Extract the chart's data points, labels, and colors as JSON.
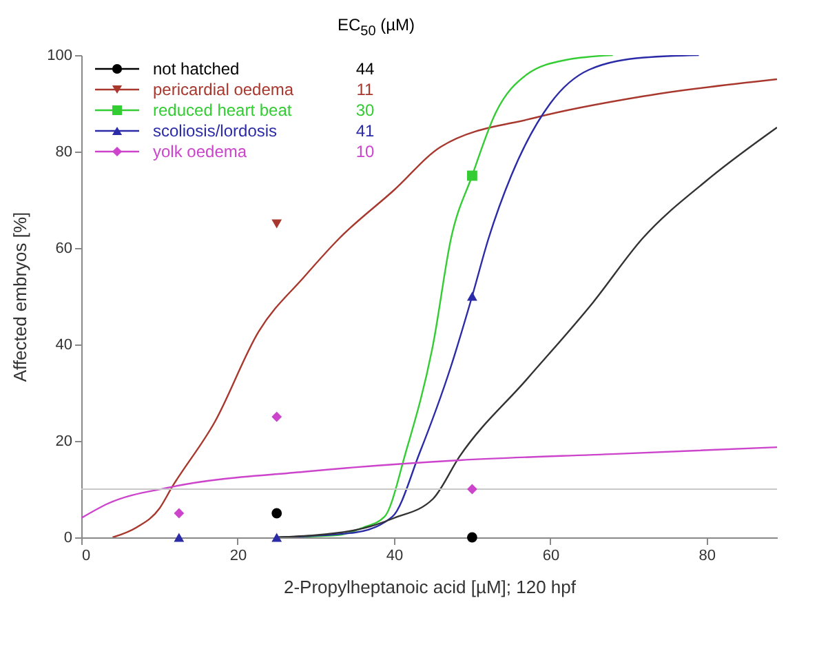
{
  "chart_data": {
    "type": "scatter",
    "xlabel": "2-Propylheptanoic acid [µM]; 120 hpf",
    "ylabel": "Affected embryos [%]",
    "x": [
      12.5,
      25,
      50
    ],
    "series": [
      {
        "type": "line",
        "color": "#a8382e",
        "x": [
          4,
          7,
          10,
          11.6,
          17.1,
          22.7,
          28.5,
          33,
          40,
          46,
          58,
          72,
          89
        ],
        "values": [
          0,
          2,
          6,
          10.4,
          24,
          42.7,
          54,
          62,
          72,
          81,
          87,
          91.5,
          95
        ]
      },
      {
        "type": "line",
        "color": "#33cc33",
        "x": [
          25,
          33,
          36,
          38.8,
          41.5,
          45,
          47.3,
          50,
          53,
          57,
          62,
          68
        ],
        "values": [
          0,
          0.5,
          2,
          4.3,
          17.6,
          40,
          62,
          75,
          88,
          96,
          99,
          100
        ]
      },
      {
        "type": "line",
        "color": "#2b2ba8",
        "x": [
          25,
          35,
          39.8,
          43.3,
          47.3,
          50,
          52.1,
          55,
          60,
          65,
          72,
          79
        ],
        "values": [
          0,
          1,
          4.3,
          17.6,
          35.5,
          50,
          62,
          75,
          90,
          97,
          99.5,
          100
        ]
      },
      {
        "type": "line",
        "color": "#333333",
        "x": [
          25,
          35,
          40,
          45,
          48.4,
          57,
          65.5,
          71.8,
          80,
          89
        ],
        "values": [
          0,
          1.5,
          4,
          8,
          16.8,
          32.8,
          48.8,
          62,
          74,
          85
        ]
      },
      {
        "type": "line",
        "color": "#cc44cc",
        "x": [
          0,
          3.4,
          11.4,
          28.5,
          48.4,
          68.4,
          89
        ],
        "values": [
          4,
          7,
          10.4,
          13.6,
          16,
          17.3,
          18.7
        ]
      },
      {
        "name": "not hatched",
        "color": "#000000",
        "marker": "circle",
        "values": [
          null,
          5,
          0
        ]
      },
      {
        "name": "pericardial oedema",
        "color": "#a8382e",
        "marker": "triangle-down",
        "values": [
          null,
          65,
          null
        ]
      },
      {
        "name": "reduced heart beat",
        "color": "#33cc33",
        "marker": "square",
        "values": [
          null,
          null,
          75
        ]
      },
      {
        "name": "scoliosis/lordosis",
        "color": "#2b2ba8",
        "marker": "triangle",
        "values": [
          0,
          0,
          50
        ]
      },
      {
        "name": "yolk oedema",
        "color": "#cc44cc",
        "marker": "diamond",
        "values": [
          5,
          25,
          10
        ]
      }
    ],
    "annotations": [
      "EC$_{50}$ (µM)",
      "44",
      "11",
      "30",
      "41",
      "10"
    ],
    "ref_lines": [
      {
        "axis": "y",
        "value": 10,
        "color": "#c8c8c8"
      }
    ],
    "xlim": [
      0,
      89
    ],
    "xticks": [
      0,
      20,
      40,
      60,
      80
    ],
    "ylim": [
      0,
      100
    ],
    "yticks": [
      0,
      20,
      40,
      60,
      80,
      100
    ],
    "legend": "top left"
  }
}
